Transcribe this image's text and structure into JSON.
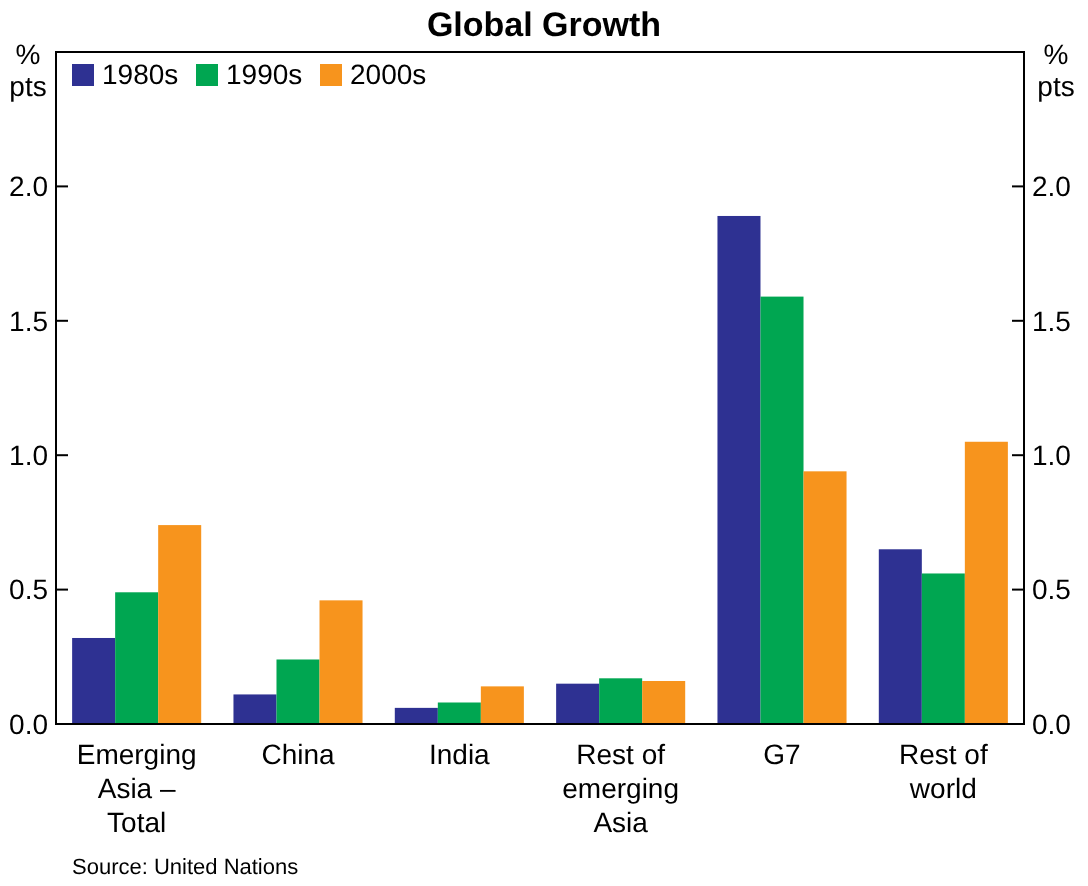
{
  "chart_data": {
    "type": "bar",
    "title": "Global Growth",
    "ylabel": "% pts",
    "y2label": "% pts",
    "categories": [
      "Emerging Asia – Total",
      "China",
      "India",
      "Rest of emerging Asia",
      "G7",
      "Rest of world"
    ],
    "series": [
      {
        "name": "1980s",
        "color": "#2e3192",
        "values": [
          0.32,
          0.11,
          0.06,
          0.15,
          1.89,
          0.65
        ]
      },
      {
        "name": "1990s",
        "color": "#00a651",
        "values": [
          0.49,
          0.24,
          0.08,
          0.17,
          1.59,
          0.56
        ]
      },
      {
        "name": "2000s",
        "color": "#f7941d",
        "values": [
          0.74,
          0.46,
          0.14,
          0.16,
          0.94,
          1.05
        ]
      }
    ],
    "ylim": [
      0,
      2.5
    ],
    "yticks": [
      {
        "value": 0,
        "label": "0.0"
      },
      {
        "value": 0.5,
        "label": "0.5"
      },
      {
        "value": 1,
        "label": "1.0"
      },
      {
        "value": 1.5,
        "label": "1.5"
      },
      {
        "value": 2,
        "label": "2.0"
      }
    ],
    "y2lim": [
      0,
      2.5
    ],
    "y2ticks": [
      {
        "value": 0,
        "label": "0.0"
      },
      {
        "value": 0.5,
        "label": "0.5"
      },
      {
        "value": 1,
        "label": "1.0"
      },
      {
        "value": 1.5,
        "label": "1.5"
      },
      {
        "value": 2,
        "label": "2.0"
      }
    ],
    "legend": "top left",
    "grid": false,
    "annotations": [
      "Source: United Nations"
    ]
  }
}
